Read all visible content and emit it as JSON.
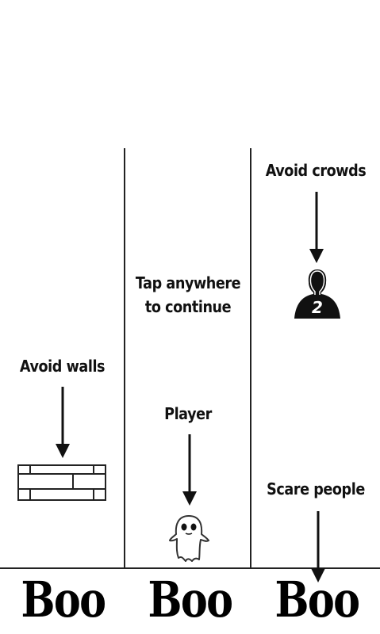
{
  "tutorial": {
    "left": {
      "label": "Avoid walls"
    },
    "center": {
      "instruction_line1": "Tap anywhere",
      "instruction_line2": "to continue",
      "label": "Player"
    },
    "right": {
      "label_top": "Avoid crowds",
      "crowd_count": "2",
      "label_bottom": "Scare people"
    }
  },
  "lanes": {
    "buttons": [
      "Boo",
      "Boo",
      "Boo"
    ]
  },
  "icons": {
    "wall": "brick-wall-icon",
    "ghost": "ghost-icon",
    "person": "person-silhouette-icon",
    "arrow": "down-arrow-icon"
  },
  "colors": {
    "background": "#ffffff",
    "ink": "#111111"
  }
}
